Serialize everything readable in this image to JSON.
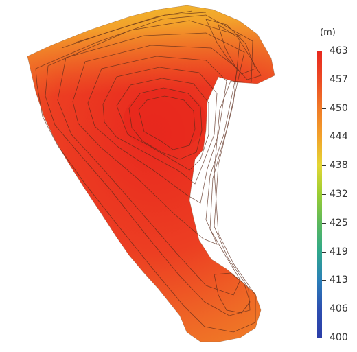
{
  "map": {
    "elevation_range_m": [
      400,
      463
    ],
    "contour_lines": true
  },
  "legend": {
    "unit": "(m)",
    "ticks": [
      "463",
      "457",
      "450",
      "444",
      "438",
      "432",
      "425",
      "419",
      "413",
      "406",
      "400"
    ],
    "gradient": [
      "#e8281e",
      "#ec4a24",
      "#f07a28",
      "#f2a22a",
      "#e3d634",
      "#9acd32",
      "#5cb85c",
      "#2fa88b",
      "#2b7fb8",
      "#2d4fb0",
      "#2b3ea8"
    ]
  }
}
